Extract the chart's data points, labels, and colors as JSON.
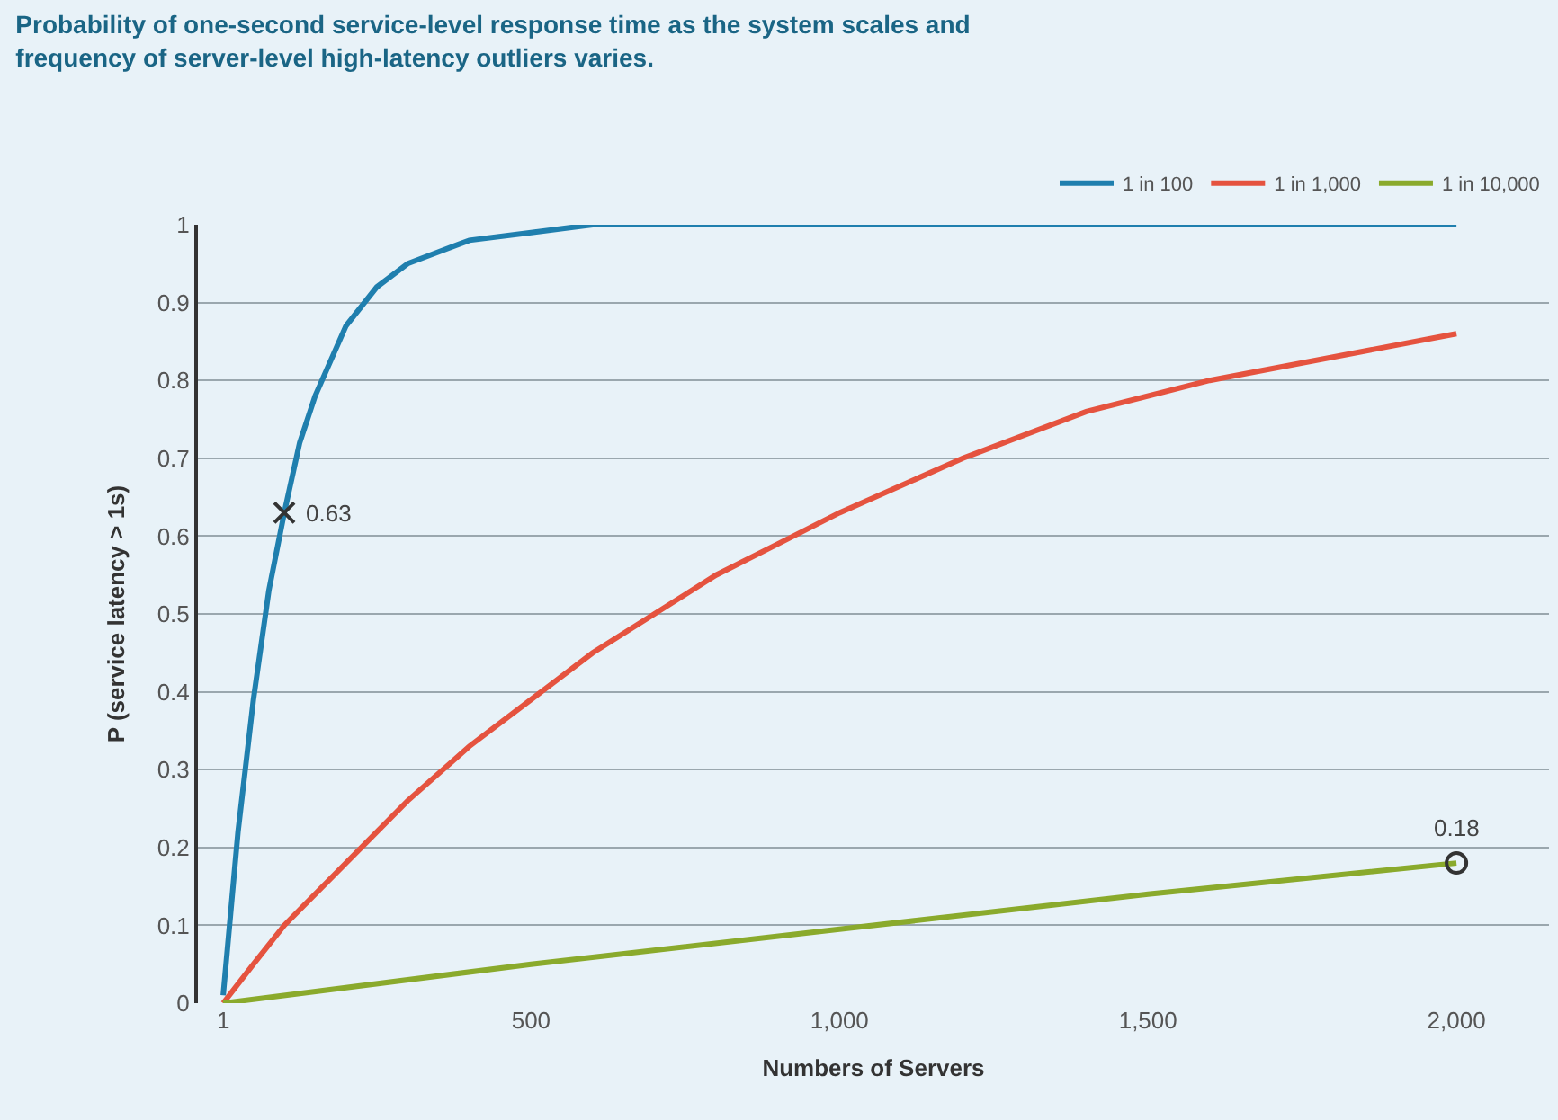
{
  "chart_data": {
    "type": "line",
    "title": "Probability of one-second service-level response time as the system scales and frequency of server-level high-latency outliers varies.",
    "xlabel": "Numbers of Servers",
    "ylabel": "P (service latency > 1s)",
    "series": [
      {
        "name": "1 in 100",
        "color": "#1f7fae",
        "x": [
          1,
          25,
          50,
          75,
          100,
          125,
          150,
          200,
          250,
          300,
          400,
          500,
          600,
          800,
          1000,
          1500,
          2000
        ],
        "values": [
          0.01,
          0.22,
          0.39,
          0.53,
          0.63,
          0.72,
          0.78,
          0.87,
          0.92,
          0.95,
          0.98,
          0.99,
          1.0,
          1.0,
          1.0,
          1.0,
          1.0
        ]
      },
      {
        "name": "1 in 1,000",
        "color": "#e5533f",
        "x": [
          1,
          50,
          100,
          200,
          300,
          400,
          500,
          600,
          700,
          800,
          900,
          1000,
          1200,
          1400,
          1600,
          1800,
          2000
        ],
        "values": [
          0.0,
          0.05,
          0.1,
          0.18,
          0.26,
          0.33,
          0.39,
          0.45,
          0.5,
          0.55,
          0.59,
          0.63,
          0.7,
          0.76,
          0.8,
          0.83,
          0.86
        ]
      },
      {
        "name": "1 in 10,000",
        "color": "#8aaa2c",
        "x": [
          1,
          500,
          1000,
          1500,
          2000
        ],
        "values": [
          0.0,
          0.05,
          0.095,
          0.14,
          0.18
        ]
      },
      {
        "type": "scatter",
        "marker": "cross",
        "color": "#333333",
        "x": [
          100
        ],
        "values": [
          0.63
        ]
      },
      {
        "type": "scatter",
        "marker": "circle",
        "color": "#333333",
        "x": [
          2000
        ],
        "values": [
          0.18
        ]
      }
    ],
    "annotations": [
      {
        "text": "0.63",
        "x": 100,
        "y": 0.63
      },
      {
        "text": "0.18",
        "x": 2000,
        "y": 0.18
      }
    ],
    "xlim": [
      -40,
      2150
    ],
    "ylim": [
      0,
      1
    ],
    "xticks": [
      1,
      500,
      {
        "value": 1000,
        "label": "1,000"
      },
      {
        "value": 1500,
        "label": "1,500"
      },
      {
        "value": 2000,
        "label": "2,000"
      }
    ],
    "yticks": [
      0,
      0.1,
      0.2,
      0.3,
      0.4,
      0.5,
      0.6,
      0.7,
      0.8,
      0.9,
      1
    ],
    "grid": "y",
    "legend": "top right",
    "marker": "none",
    "line_style": "solid"
  }
}
